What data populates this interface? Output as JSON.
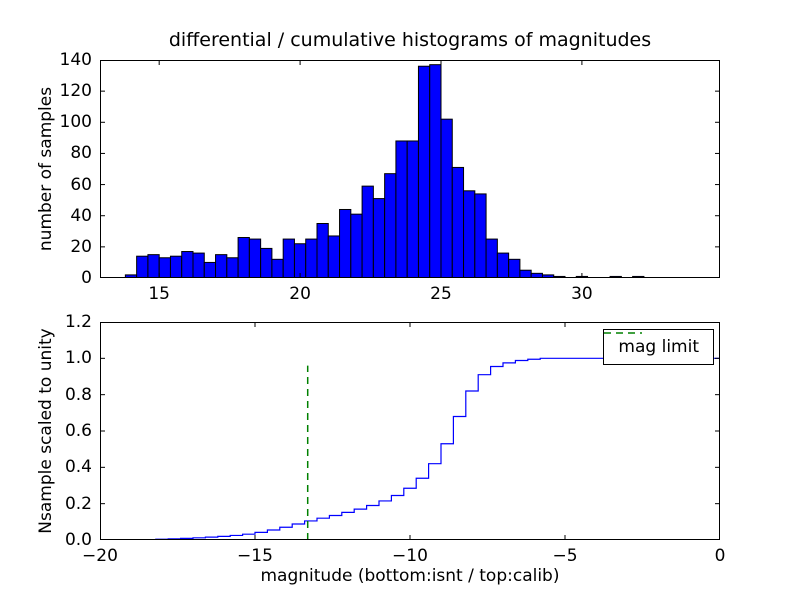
{
  "chart_data": [
    {
      "type": "bar",
      "title": "differential / cumulative histograms of magnitudes",
      "ylabel": "number of samples",
      "bar_color": "#0000ff",
      "edge_color": "#000000",
      "bin_start": 13.8,
      "bin_width": 0.4,
      "values": [
        2,
        14,
        15,
        13,
        14,
        17,
        16,
        10,
        15,
        13,
        26,
        25,
        19,
        12,
        25,
        22,
        25,
        35,
        27,
        44,
        41,
        59,
        51,
        67,
        88,
        88,
        136,
        137,
        102,
        71,
        56,
        54,
        25,
        16,
        12,
        5,
        3,
        2,
        1,
        0,
        1,
        0,
        0,
        1,
        0,
        1
      ],
      "xlim": [
        12.9,
        34.9
      ],
      "ylim": [
        0,
        140
      ],
      "xticks": [
        15,
        20,
        25,
        30
      ],
      "xtick_labels": [
        "15",
        "20",
        "25",
        "30"
      ],
      "yticks": [
        0,
        20,
        40,
        60,
        80,
        100,
        120,
        140
      ],
      "ytick_labels": [
        "0",
        "20",
        "40",
        "60",
        "80",
        "100",
        "120",
        "140"
      ],
      "grid": false
    },
    {
      "type": "line",
      "step": true,
      "ylabel": "Nsample scaled to unity",
      "xlabel": "magnitude (bottom:isnt / top:calib)",
      "line_color": "#0000ff",
      "x": [
        -20,
        -19.0,
        -18.6,
        -18.2,
        -17.8,
        -17.4,
        -17.0,
        -16.6,
        -16.2,
        -15.8,
        -15.4,
        -15.0,
        -14.6,
        -14.2,
        -13.8,
        -13.4,
        -13.0,
        -12.6,
        -12.2,
        -11.8,
        -11.4,
        -11.0,
        -10.6,
        -10.2,
        -9.8,
        -9.4,
        -9.0,
        -8.6,
        -8.2,
        -7.8,
        -7.4,
        -7.0,
        -6.6,
        -6.2,
        -5.8,
        0
      ],
      "y": [
        0,
        0.001,
        0.002,
        0.004,
        0.006,
        0.009,
        0.012,
        0.016,
        0.02,
        0.025,
        0.032,
        0.042,
        0.055,
        0.07,
        0.088,
        0.105,
        0.12,
        0.135,
        0.152,
        0.17,
        0.19,
        0.215,
        0.245,
        0.285,
        0.34,
        0.42,
        0.53,
        0.68,
        0.82,
        0.91,
        0.955,
        0.975,
        0.988,
        0.995,
        1.0,
        1.0
      ],
      "xlim": [
        -20,
        0
      ],
      "ylim": [
        0,
        1.2
      ],
      "xticks": [
        -20,
        -15,
        -10,
        -5,
        0
      ],
      "xtick_labels": [
        "−20",
        "−15",
        "−10",
        "−5",
        "0"
      ],
      "yticks": [
        0,
        0.2,
        0.4,
        0.6,
        0.8,
        1.0,
        1.2
      ],
      "ytick_labels": [
        "0.0",
        "0.2",
        "0.4",
        "0.6",
        "0.8",
        "1.0",
        "1.2"
      ],
      "vline": {
        "x": -13.3,
        "y_from": 0,
        "y_to": 0.96,
        "color": "#008000",
        "style": "dashed"
      },
      "legend": {
        "label": "mag limit",
        "position": "upper right"
      },
      "grid": false
    }
  ]
}
